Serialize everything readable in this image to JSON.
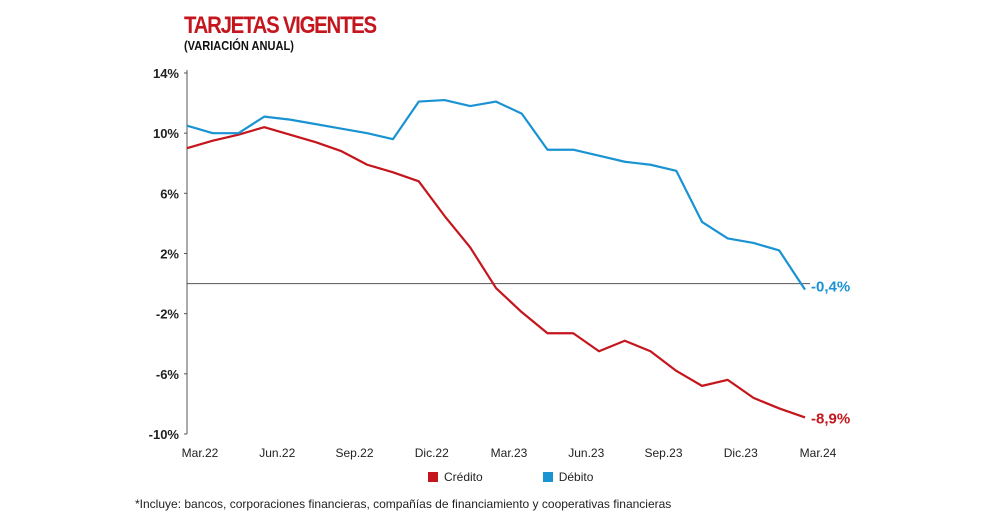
{
  "chart_data": {
    "type": "line",
    "title": "TARJETAS VIGENTES",
    "subtitle": "(VARIACIÓN ANUAL)",
    "x": [
      "Mar.22",
      "Abr.22",
      "May.22",
      "Jun.22",
      "Jul.22",
      "Ago.22",
      "Sep.22",
      "Oct.22",
      "Nov.22",
      "Dic.22",
      "Ene.23",
      "Feb.23",
      "Mar.23",
      "Abr.23",
      "May.23",
      "Jun.23",
      "Jul.23",
      "Ago.23",
      "Sep.23",
      "Oct.23",
      "Nov.23",
      "Dic.23",
      "Ene.24",
      "Feb.24",
      "Mar.24"
    ],
    "x_tick_labels": [
      "Mar.22",
      "Jun.22",
      "Sep.22",
      "Dic.22",
      "Mar.23",
      "Jun.23",
      "Sep.23",
      "Dic.23",
      "Mar.24"
    ],
    "y_tick_labels": [
      "14%",
      "10%",
      "6%",
      "2%",
      "-2%",
      "-6%",
      "-10%"
    ],
    "ylim": [
      -10,
      14
    ],
    "y_ticks": [
      14,
      10,
      6,
      2,
      -2,
      -6,
      -10
    ],
    "grid": false,
    "legend_position": "bottom",
    "series": [
      {
        "name": "Crédito",
        "color": "#c4161c",
        "end_label": "-8,9%",
        "values": [
          9.0,
          9.5,
          9.9,
          10.4,
          9.9,
          9.4,
          8.8,
          7.9,
          7.4,
          6.8,
          4.5,
          2.4,
          -0.3,
          -1.9,
          -3.3,
          -3.3,
          -4.5,
          -3.8,
          -4.5,
          -5.8,
          -6.8,
          -6.4,
          -7.6,
          -8.3,
          -8.9
        ]
      },
      {
        "name": "Débito",
        "color": "#1a93d3",
        "end_label": "-0,4%",
        "values": [
          10.5,
          10.0,
          10.0,
          11.1,
          10.9,
          10.6,
          10.3,
          10.0,
          9.6,
          12.1,
          12.2,
          11.8,
          12.1,
          11.3,
          8.9,
          8.9,
          8.5,
          8.1,
          7.9,
          7.5,
          4.1,
          3.0,
          2.7,
          2.2,
          -0.4
        ]
      }
    ]
  },
  "footnote": "*Incluye: bancos, corporaciones financieras, compañías de financiamiento y cooperativas financieras"
}
